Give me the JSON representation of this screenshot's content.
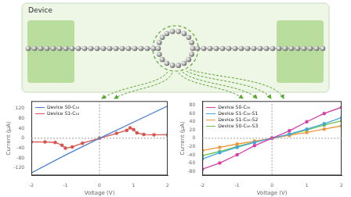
{
  "diagram": {
    "label": "Device"
  },
  "chart_data": [
    {
      "type": "line",
      "xlabel": "Voltage (V)",
      "ylabel": "Current (μA)",
      "xlim": [
        -2,
        2
      ],
      "xticks": [
        -2,
        -1,
        0,
        1,
        2
      ],
      "ylim": [
        -150,
        150
      ],
      "yticks": [
        -120,
        -80,
        -40,
        0,
        40,
        80,
        120
      ],
      "grid": false,
      "legend": "upper left",
      "series": [
        {
          "name": "Device S0-C₁₈",
          "color": "#4a7fd4",
          "marker": "none",
          "x": [
            -2,
            -1,
            0,
            1,
            2
          ],
          "values": [
            -140,
            -68,
            0,
            65,
            130
          ]
        },
        {
          "name": "Device S1-C₁₈",
          "color": "#d9534f",
          "marker": "circle",
          "x": [
            -2,
            -1.6,
            -1.3,
            -1.1,
            -1,
            -0.8,
            -0.5,
            0,
            0.5,
            0.8,
            0.9,
            1,
            1.1,
            1.3,
            1.6,
            2
          ],
          "values": [
            -15,
            -15,
            -17,
            -28,
            -40,
            -35,
            -20,
            0,
            20,
            32,
            42,
            35,
            22,
            15,
            14,
            14
          ]
        }
      ]
    },
    {
      "type": "line",
      "xlabel": "Voltage (V)",
      "ylabel": "Current (μA)",
      "xlim": [
        -2,
        2
      ],
      "xticks": [
        -2,
        -1,
        0,
        1,
        2
      ],
      "ylim": [
        -90,
        90
      ],
      "yticks": [
        -80,
        -60,
        -40,
        -20,
        0,
        20,
        40,
        60,
        80
      ],
      "grid": false,
      "legend": "upper left",
      "series": [
        {
          "name": "Device S0-C₃₆",
          "color": "#d63fa8",
          "marker": "circle",
          "x": [
            -2,
            -1.5,
            -1,
            -0.5,
            0,
            0.5,
            1,
            1.5,
            2
          ],
          "values": [
            -75,
            -60,
            -40,
            -18,
            0,
            18,
            40,
            60,
            75
          ]
        },
        {
          "name": "Device S1-C₃₆-S1",
          "color": "#3fa7e0",
          "marker": "circle",
          "x": [
            -2,
            -1.5,
            -1,
            -0.5,
            0,
            0.5,
            1,
            1.5,
            2
          ],
          "values": [
            -50,
            -35,
            -22,
            -10,
            0,
            10,
            22,
            35,
            50
          ]
        },
        {
          "name": "Device S1-C₃₆-S2",
          "color": "#f0963c",
          "marker": "circle",
          "x": [
            -2,
            -1.5,
            -1,
            -0.5,
            0,
            0.5,
            1,
            1.5,
            2
          ],
          "values": [
            -30,
            -22,
            -14,
            -7,
            0,
            7,
            14,
            22,
            30
          ]
        },
        {
          "name": "Device S0-C₃₆-S3",
          "color": "#6fbf4a",
          "marker": "circle",
          "x": [
            -2,
            -1.5,
            -1,
            -0.5,
            0,
            0.5,
            1,
            1.5,
            2
          ],
          "values": [
            -42,
            -32,
            -20,
            -9,
            0,
            9,
            20,
            32,
            42
          ]
        }
      ]
    }
  ]
}
